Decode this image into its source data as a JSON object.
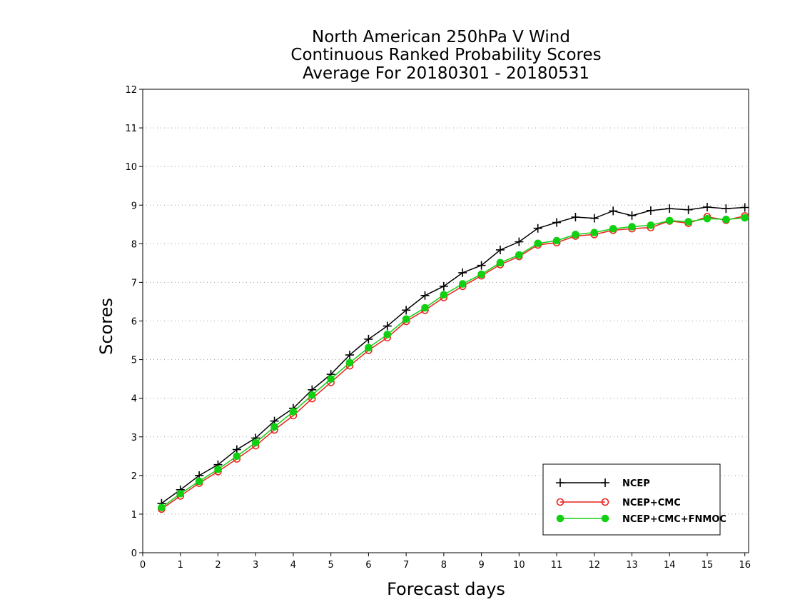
{
  "chart_data": {
    "type": "line",
    "title_lines": [
      "North American 250hPa V Wind",
      "Continuous Ranked Probability Scores",
      "Average For 20180301 - 20180531"
    ],
    "xlabel": "Forecast days",
    "ylabel": "Scores",
    "xlim": [
      0,
      16.1
    ],
    "ylim": [
      0,
      12
    ],
    "xticks": [
      0,
      1,
      2,
      3,
      4,
      5,
      6,
      7,
      8,
      9,
      10,
      11,
      12,
      13,
      14,
      15,
      16
    ],
    "yticks": [
      0,
      1,
      2,
      3,
      4,
      5,
      6,
      7,
      8,
      9,
      10,
      11,
      12
    ],
    "grid": "horizontal dotted",
    "legend_position": "bottom-right",
    "x": [
      0.5,
      1,
      1.5,
      2,
      2.5,
      3,
      3.5,
      4,
      4.5,
      5,
      5.5,
      6,
      6.5,
      7,
      7.5,
      8,
      8.5,
      9,
      9.5,
      10,
      10.5,
      11,
      11.5,
      12,
      12.5,
      13,
      13.5,
      14,
      14.5,
      15,
      15.5,
      16
    ],
    "series": [
      {
        "name": "NCEP",
        "color": "#000000",
        "marker": "plus",
        "values": [
          1.28,
          1.63,
          2.0,
          2.28,
          2.67,
          2.97,
          3.41,
          3.74,
          4.22,
          4.62,
          5.12,
          5.53,
          5.87,
          6.28,
          6.66,
          6.9,
          7.25,
          7.44,
          7.84,
          8.05,
          8.4,
          8.55,
          8.69,
          8.66,
          8.85,
          8.73,
          8.86,
          8.91,
          8.88,
          8.95,
          8.91,
          8.94
        ]
      },
      {
        "name": "NCEP+CMC",
        "color": "#e8221e",
        "marker": "open-circle",
        "values": [
          1.13,
          1.47,
          1.8,
          2.1,
          2.43,
          2.77,
          3.18,
          3.55,
          3.99,
          4.41,
          4.84,
          5.24,
          5.57,
          5.99,
          6.28,
          6.61,
          6.9,
          7.17,
          7.46,
          7.67,
          7.97,
          8.03,
          8.2,
          8.24,
          8.35,
          8.39,
          8.42,
          8.59,
          8.53,
          8.7,
          8.61,
          8.72
        ]
      },
      {
        "name": "NCEP+CMC+FNMOC",
        "color": "#11d011",
        "marker": "filled-circle",
        "values": [
          1.17,
          1.53,
          1.85,
          2.16,
          2.5,
          2.85,
          3.26,
          3.65,
          4.08,
          4.5,
          4.92,
          5.31,
          5.65,
          6.05,
          6.34,
          6.68,
          6.96,
          7.21,
          7.51,
          7.71,
          8.01,
          8.08,
          8.24,
          8.29,
          8.39,
          8.44,
          8.48,
          8.6,
          8.57,
          8.65,
          8.63,
          8.67
        ]
      }
    ]
  }
}
